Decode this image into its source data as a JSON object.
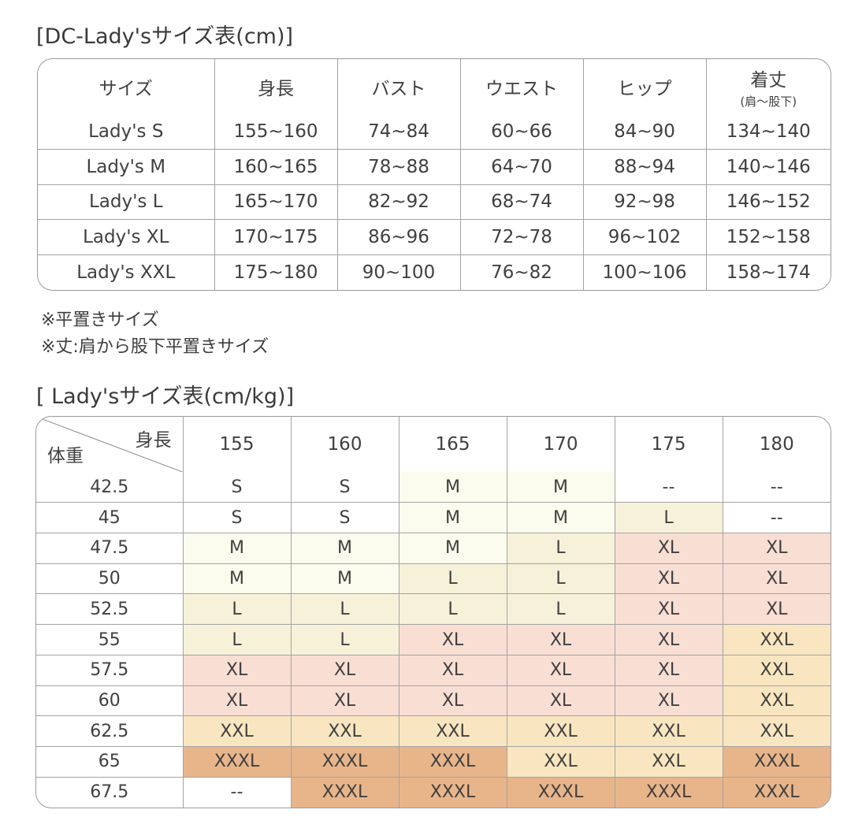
{
  "table1": {
    "title": "[DC-Lady'sサイズ表(cm)]",
    "headers": [
      "サイズ",
      "身長",
      "バスト",
      "ウエスト",
      "ヒップ"
    ],
    "last_header_main": "着丈",
    "last_header_sub": "(肩〜股下)",
    "rows": [
      [
        "Lady's S",
        "155~160",
        "74~84",
        "60~66",
        "84~90",
        "134~140"
      ],
      [
        "Lady's M",
        "160~165",
        "78~88",
        "64~70",
        "88~94",
        "140~146"
      ],
      [
        "Lady's L",
        "165~170",
        "82~92",
        "68~74",
        "92~98",
        "146~152"
      ],
      [
        "Lady's XL",
        "170~175",
        "86~96",
        "72~78",
        "96~102",
        "152~158"
      ],
      [
        "Lady's XXL",
        "175~180",
        "90~100",
        "76~82",
        "100~106",
        "158~174"
      ]
    ]
  },
  "notes": [
    "※平置きサイズ",
    "※丈:肩から股下平置きサイズ"
  ],
  "table2": {
    "title": "[ Lady'sサイズ表(cm/kg)]",
    "corner_top": "身長",
    "corner_bottom": "体重",
    "heights": [
      "155",
      "160",
      "165",
      "170",
      "175",
      "180"
    ],
    "weights": [
      "42.5",
      "45",
      "47.5",
      "50",
      "52.5",
      "55",
      "57.5",
      "60",
      "62.5",
      "65",
      "67.5"
    ],
    "cells": [
      [
        "S",
        "S",
        "M",
        "M",
        "--",
        "--"
      ],
      [
        "S",
        "S",
        "M",
        "M",
        "L",
        "--"
      ],
      [
        "M",
        "M",
        "M",
        "L",
        "XL",
        "XL"
      ],
      [
        "M",
        "M",
        "L",
        "L",
        "XL",
        "XL"
      ],
      [
        "L",
        "L",
        "L",
        "L",
        "XL",
        "XL"
      ],
      [
        "L",
        "L",
        "XL",
        "XL",
        "XL",
        "XXL"
      ],
      [
        "XL",
        "XL",
        "XL",
        "XL",
        "XL",
        "XXL"
      ],
      [
        "XL",
        "XL",
        "XL",
        "XL",
        "XL",
        "XXL"
      ],
      [
        "XXL",
        "XXL",
        "XXL",
        "XXL",
        "XXL",
        "XXL"
      ],
      [
        "XXXL",
        "XXXL",
        "XXXL",
        "XXL",
        "XXL",
        "XXXL"
      ],
      [
        "--",
        "XXXL",
        "XXXL",
        "XXXL",
        "XXXL",
        "XXXL"
      ]
    ],
    "cell_colors": [
      [
        "#ffffff",
        "#ffffff",
        "#fbfcee",
        "#fbfcee",
        "#ffffff",
        "#ffffff"
      ],
      [
        "#ffffff",
        "#ffffff",
        "#fbfcee",
        "#fbfcee",
        "#f7f1da",
        "#ffffff"
      ],
      [
        "#fbfcee",
        "#fbfcee",
        "#fbfcee",
        "#f7f1da",
        "#f9ded4",
        "#f9ded4"
      ],
      [
        "#fbfcee",
        "#fbfcee",
        "#f7f1da",
        "#f7f1da",
        "#f9ded4",
        "#f9ded4"
      ],
      [
        "#f7f1da",
        "#f7f1da",
        "#f7f1da",
        "#f7f1da",
        "#f9ded4",
        "#f9ded4"
      ],
      [
        "#f7f1da",
        "#f7f1da",
        "#f9ded4",
        "#f9ded4",
        "#f9ded4",
        "#f9e6c0"
      ],
      [
        "#f9ded4",
        "#f9ded4",
        "#f9ded4",
        "#f9ded4",
        "#f9ded4",
        "#f9e6c0"
      ],
      [
        "#f9ded4",
        "#f9ded4",
        "#f9ded4",
        "#f9ded4",
        "#f9ded4",
        "#f9e6c0"
      ],
      [
        "#f9e6c0",
        "#f9e6c0",
        "#f9e6c0",
        "#f9e6c0",
        "#f9e6c0",
        "#f9e6c0"
      ],
      [
        "#e8b58a",
        "#e8b58a",
        "#e8b58a",
        "#f9e6c0",
        "#f9e6c0",
        "#e8b58a"
      ],
      [
        "#ffffff",
        "#e8b58a",
        "#e8b58a",
        "#e8b58a",
        "#e8b58a",
        "#e8b58a"
      ]
    ]
  }
}
